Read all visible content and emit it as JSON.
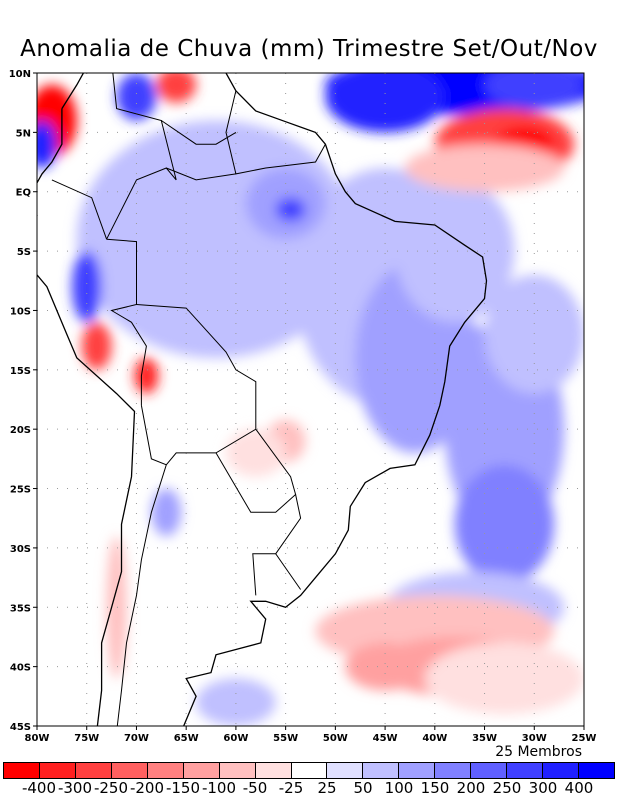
{
  "title": "Anomalia de Chuva (mm) Trimestre Set/Out/Nov",
  "members_note": "25 Membros",
  "lat_ticks": [
    "10N",
    "5N",
    "EQ",
    "5S",
    "10S",
    "15S",
    "20S",
    "25S",
    "30S",
    "35S",
    "40S",
    "45S"
  ],
  "lon_ticks": [
    "80W",
    "75W",
    "70W",
    "65W",
    "60W",
    "55W",
    "50W",
    "45W",
    "40W",
    "35W",
    "30W",
    "25W"
  ],
  "legend": {
    "labels": [
      "-400",
      "-300",
      "-250",
      "-200",
      "-150",
      "-100",
      "-50",
      "-25",
      "25",
      "50",
      "100",
      "150",
      "200",
      "250",
      "300",
      "400"
    ],
    "colors": [
      "#ff0000",
      "#ff2020",
      "#ff4040",
      "#ff6060",
      "#ff8080",
      "#ffa0a0",
      "#ffc0c0",
      "#ffe0e0",
      "#ffffff",
      "#e0e0ff",
      "#c0c0ff",
      "#a0a0ff",
      "#8080ff",
      "#6060ff",
      "#4040ff",
      "#2020ff",
      "#0000ff"
    ]
  }
}
